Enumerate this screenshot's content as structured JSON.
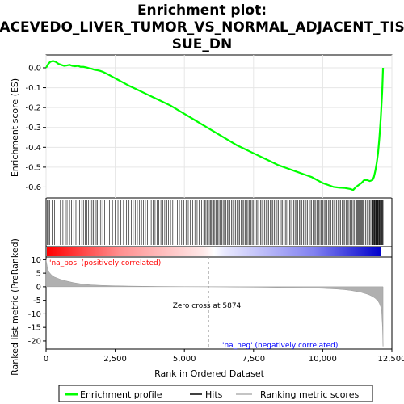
{
  "chart_data": {
    "type": "line",
    "title_lines": [
      "Enrichment plot:",
      "ACEVEDO_LIVER_TUMOR_VS_NORMAL_ADJACENT_TIS",
      "SUE_DN"
    ],
    "x_label": "Rank in Ordered Dataset",
    "y_label_top": "Enrichment score (ES)",
    "y_label_bottom": "Ranked list metric (PreRanked)",
    "x_range": [
      0,
      12500
    ],
    "x_ticks": [
      0,
      2500,
      5000,
      7500,
      10000,
      12500
    ],
    "x_tick_labels": [
      "0",
      "2,500",
      "5,000",
      "7,500",
      "10,000",
      "12,500"
    ],
    "es_y_range": [
      -0.655,
      0.065
    ],
    "es_y_ticks": [
      0.0,
      -0.1,
      -0.2,
      -0.3,
      -0.4,
      -0.5,
      -0.6
    ],
    "es_y_tick_labels": [
      "0.0",
      "-0.1",
      "-0.2",
      "-0.3",
      "-0.4",
      "-0.5",
      "-0.6"
    ],
    "metric_y_range": [
      -23,
      11
    ],
    "metric_y_ticks": [
      10,
      5,
      0,
      -5,
      -10,
      -15,
      -20
    ],
    "metric_y_tick_labels": [
      "10",
      "5",
      "0",
      "-5",
      "-10",
      "-15",
      "-20"
    ],
    "colors": {
      "es_line": "#00ff00",
      "hits": "#000000",
      "metric_fill": "#b0b0b0",
      "pos_text": "#ff0000",
      "neg_text": "#0000ff",
      "zero_line": "#999999"
    },
    "series": [
      {
        "name": "Enrichment profile",
        "x": [
          0,
          80,
          150,
          250,
          350,
          450,
          550,
          650,
          750,
          850,
          950,
          1050,
          1150,
          1250,
          1350,
          1450,
          1550,
          1650,
          1750,
          1850,
          1950,
          2050,
          2200,
          2400,
          2600,
          2800,
          3000,
          3300,
          3600,
          3900,
          4200,
          4500,
          4800,
          5100,
          5400,
          5700,
          6000,
          6300,
          6600,
          6900,
          7200,
          7500,
          7800,
          8100,
          8400,
          8700,
          9000,
          9300,
          9600,
          9800,
          10000,
          10200,
          10400,
          10600,
          10800,
          11000,
          11100,
          11200,
          11300,
          11400,
          11500,
          11600,
          11700,
          11800,
          11850,
          11900,
          11950,
          12000,
          12050,
          12100,
          12150,
          12180
        ],
        "y": [
          0.0,
          0.02,
          0.03,
          0.035,
          0.03,
          0.02,
          0.015,
          0.01,
          0.012,
          0.015,
          0.01,
          0.008,
          0.01,
          0.005,
          0.005,
          0.002,
          -0.002,
          -0.005,
          -0.01,
          -0.012,
          -0.015,
          -0.02,
          -0.03,
          -0.045,
          -0.06,
          -0.075,
          -0.09,
          -0.11,
          -0.13,
          -0.15,
          -0.17,
          -0.19,
          -0.215,
          -0.24,
          -0.265,
          -0.29,
          -0.315,
          -0.34,
          -0.365,
          -0.39,
          -0.41,
          -0.43,
          -0.45,
          -0.47,
          -0.49,
          -0.505,
          -0.52,
          -0.535,
          -0.55,
          -0.565,
          -0.58,
          -0.59,
          -0.6,
          -0.603,
          -0.605,
          -0.61,
          -0.615,
          -0.6,
          -0.59,
          -0.58,
          -0.565,
          -0.565,
          -0.57,
          -0.565,
          -0.55,
          -0.52,
          -0.48,
          -0.43,
          -0.35,
          -0.25,
          -0.12,
          0.0
        ]
      }
    ],
    "hits": {
      "name": "Hits",
      "positions": [
        40,
        90,
        130,
        220,
        310,
        400,
        520,
        610,
        700,
        760,
        850,
        920,
        1000,
        1080,
        1150,
        1210,
        1290,
        1350,
        1420,
        1480,
        1540,
        1600,
        1660,
        1710,
        1760,
        1810,
        1860,
        1920,
        1980,
        2050,
        2120,
        2200,
        2290,
        2400,
        2500,
        2600,
        2700,
        2800,
        2900,
        3000,
        3080,
        3150,
        3220,
        3300,
        3380,
        3450,
        3520,
        3590,
        3660,
        3730,
        3800,
        3870,
        3940,
        4010,
        4080,
        4150,
        4220,
        4290,
        4360,
        4430,
        4500,
        4580,
        4660,
        4740,
        4820,
        4900,
        4980,
        5060,
        5140,
        5220,
        5300,
        5380,
        5460,
        5540,
        5620,
        5700,
        5740,
        5780,
        5820,
        5860,
        5900,
        5940,
        5980,
        6020,
        6060,
        6100,
        6150,
        6200,
        6250,
        6300,
        6350,
        6400,
        6450,
        6500,
        6550,
        6600,
        6650,
        6700,
        6750,
        6800,
        6850,
        6900,
        6950,
        7000,
        7050,
        7100,
        7150,
        7200,
        7250,
        7300,
        7350,
        7400,
        7450,
        7500,
        7550,
        7600,
        7650,
        7700,
        7750,
        7800,
        7850,
        7900,
        7950,
        8000,
        8050,
        8100,
        8150,
        8200,
        8250,
        8300,
        8350,
        8400,
        8450,
        8500,
        8550,
        8600,
        8650,
        8700,
        8750,
        8800,
        8850,
        8900,
        8950,
        9000,
        9050,
        9100,
        9150,
        9200,
        9250,
        9300,
        9350,
        9400,
        9450,
        9500,
        9550,
        9600,
        9650,
        9700,
        9750,
        9800,
        9850,
        9900,
        9950,
        10000,
        10050,
        10100,
        10150,
        10200,
        10250,
        10300,
        10350,
        10400,
        10450,
        10500,
        10550,
        10600,
        10650,
        10700,
        10750,
        10800,
        10850,
        10900,
        10950,
        11000,
        11050,
        11100,
        11150,
        11200,
        11230,
        11260,
        11290,
        11320,
        11350,
        11380,
        11410,
        11440,
        11470,
        11500,
        11550,
        11600,
        11650,
        11700,
        11740,
        11780,
        11800,
        11820,
        11840,
        11860,
        11880,
        11900,
        11920,
        11940,
        11960,
        11980,
        12000,
        12020,
        12040,
        12060,
        12080,
        12100,
        12120,
        12140,
        12160,
        12180
      ]
    },
    "ranking_metric": {
      "name": "Ranking metric scores",
      "x": [
        0,
        50,
        100,
        200,
        300,
        500,
        700,
        1000,
        1300,
        1600,
        2000,
        2500,
        3000,
        3500,
        4000,
        4500,
        5000,
        5500,
        5874,
        6500,
        7000,
        7500,
        8000,
        8500,
        9000,
        9500,
        10000,
        10500,
        10800,
        11000,
        11200,
        11400,
        11600,
        11700,
        11800,
        11900,
        12000,
        12050,
        12100,
        12130,
        12160,
        12180
      ],
      "y": [
        10,
        7,
        5.5,
        4.3,
        3.6,
        2.8,
        2.2,
        1.5,
        1.0,
        0.7,
        0.5,
        0.35,
        0.25,
        0.18,
        0.12,
        0.08,
        0.04,
        0.02,
        0.0,
        -0.05,
        -0.1,
        -0.15,
        -0.2,
        -0.28,
        -0.35,
        -0.45,
        -0.6,
        -0.85,
        -1.1,
        -1.35,
        -1.7,
        -2.1,
        -2.7,
        -3.1,
        -3.6,
        -4.3,
        -5.3,
        -6.2,
        -7.5,
        -9.0,
        -15,
        -22
      ]
    },
    "annotations": {
      "pos": "'na_pos' (positively correlated)",
      "neg": "'na_neg' (negatively correlated)",
      "zero_cross": "Zero cross at 5874",
      "zero_cross_x": 5874
    },
    "legend": [
      {
        "label": "Enrichment profile",
        "color": "#00ff00"
      },
      {
        "label": "Hits",
        "color": "#000000"
      },
      {
        "label": "Ranking metric scores",
        "color": "#b0b0b0"
      }
    ]
  }
}
